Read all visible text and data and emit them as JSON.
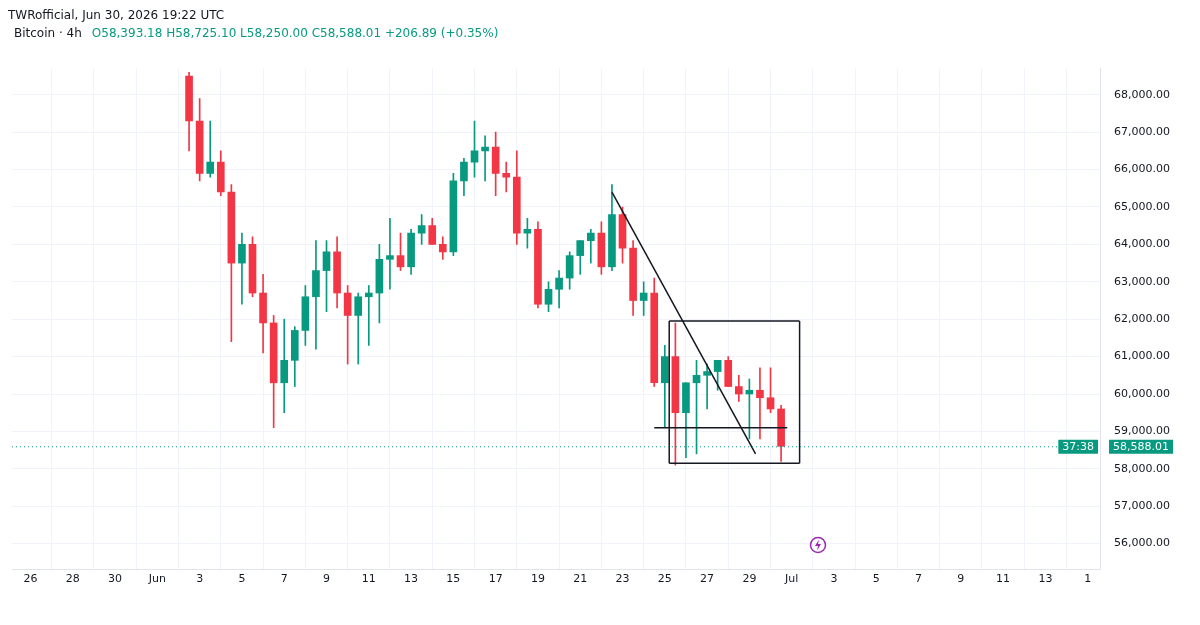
{
  "chart_data": {
    "type": "candlestick",
    "title": "Bitcoin · 4h",
    "subtitle": "O58,393.18 H58,725.10 L58,250.00 C58,588.01 +206.89 (+0.35%)",
    "annotations": [
      "TWRofficial, Jun 30, 2026 19:22 UTC",
      "37:38"
    ],
    "x": [
      "2026-06-02T12:00",
      "2026-06-03T00:00",
      "2026-06-03T12:00",
      "2026-06-04T00:00",
      "2026-06-04T12:00",
      "2026-06-05T00:00",
      "2026-06-05T12:00",
      "2026-06-06T00:00",
      "2026-06-06T12:00",
      "2026-06-07T00:00",
      "2026-06-07T12:00",
      "2026-06-08T00:00",
      "2026-06-08T12:00",
      "2026-06-09T00:00",
      "2026-06-09T12:00",
      "2026-06-10T00:00",
      "2026-06-10T12:00",
      "2026-06-11T00:00",
      "2026-06-11T12:00",
      "2026-06-12T00:00",
      "2026-06-12T12:00",
      "2026-06-13T00:00",
      "2026-06-13T12:00",
      "2026-06-14T00:00",
      "2026-06-14T12:00",
      "2026-06-15T00:00",
      "2026-06-15T12:00",
      "2026-06-16T00:00",
      "2026-06-16T12:00",
      "2026-06-17T00:00",
      "2026-06-17T12:00",
      "2026-06-18T00:00",
      "2026-06-18T12:00",
      "2026-06-19T00:00",
      "2026-06-19T12:00",
      "2026-06-20T00:00",
      "2026-06-20T12:00",
      "2026-06-21T00:00",
      "2026-06-21T12:00",
      "2026-06-22T00:00",
      "2026-06-22T12:00",
      "2026-06-23T00:00",
      "2026-06-23T12:00",
      "2026-06-24T00:00",
      "2026-06-24T12:00",
      "2026-06-25T00:00",
      "2026-06-25T12:00",
      "2026-06-26T00:00",
      "2026-06-26T12:00",
      "2026-06-27T00:00",
      "2026-06-27T12:00",
      "2026-06-28T00:00",
      "2026-06-28T12:00",
      "2026-06-29T00:00",
      "2026-06-29T12:00",
      "2026-06-30T00:00",
      "2026-06-30T12:00"
    ],
    "ohlc": [
      [
        68500,
        68600,
        66500,
        67300
      ],
      [
        67300,
        67900,
        65700,
        65900
      ],
      [
        65900,
        67300,
        65800,
        66200
      ],
      [
        66200,
        66500,
        65300,
        65400
      ],
      [
        65400,
        65600,
        61400,
        63500
      ],
      [
        63500,
        64300,
        62400,
        64000
      ],
      [
        64000,
        64200,
        62600,
        62700
      ],
      [
        62700,
        63200,
        61100,
        61900
      ],
      [
        61900,
        62100,
        59100,
        60300
      ],
      [
        60300,
        62000,
        59500,
        60900
      ],
      [
        60900,
        61800,
        60200,
        61700
      ],
      [
        61700,
        62900,
        61300,
        62600
      ],
      [
        62600,
        64100,
        61200,
        63300
      ],
      [
        63300,
        64100,
        62200,
        63800
      ],
      [
        63800,
        64200,
        62300,
        62700
      ],
      [
        62700,
        62900,
        60800,
        62100
      ],
      [
        62100,
        62700,
        60800,
        62600
      ],
      [
        62600,
        62900,
        61300,
        62700
      ],
      [
        62700,
        64000,
        61900,
        63600
      ],
      [
        63600,
        64700,
        62800,
        63700
      ],
      [
        63700,
        64300,
        63300,
        63400
      ],
      [
        63400,
        64400,
        63200,
        64300
      ],
      [
        64300,
        64800,
        64000,
        64500
      ],
      [
        64500,
        64700,
        64000,
        64000
      ],
      [
        64000,
        64200,
        63600,
        63800
      ],
      [
        63800,
        65900,
        63700,
        65700
      ],
      [
        65700,
        66300,
        65300,
        66200
      ],
      [
        66200,
        67300,
        65800,
        66500
      ],
      [
        66500,
        66900,
        65700,
        66600
      ],
      [
        66600,
        67000,
        65300,
        65900
      ],
      [
        65900,
        66200,
        65400,
        65800
      ],
      [
        65800,
        66500,
        64000,
        64300
      ],
      [
        64300,
        64700,
        63900,
        64400
      ],
      [
        64400,
        64600,
        62300,
        62400
      ],
      [
        62400,
        63000,
        62200,
        62800
      ],
      [
        62800,
        63300,
        62300,
        63100
      ],
      [
        63100,
        63800,
        62800,
        63700
      ],
      [
        63700,
        64100,
        63200,
        64100
      ],
      [
        64100,
        64400,
        63500,
        64300
      ],
      [
        64300,
        64600,
        63200,
        63400
      ],
      [
        63400,
        65600,
        63300,
        64800
      ],
      [
        64800,
        65000,
        63500,
        63900
      ],
      [
        63900,
        64100,
        62100,
        62500
      ],
      [
        62500,
        63000,
        62100,
        62700
      ],
      [
        62700,
        63100,
        60200,
        60300
      ],
      [
        60300,
        61300,
        59100,
        61000
      ],
      [
        61000,
        61900,
        58100,
        59500
      ],
      [
        59500,
        60300,
        58300,
        60300
      ],
      [
        60300,
        60900,
        58400,
        60500
      ],
      [
        60500,
        60800,
        59600,
        60600
      ],
      [
        60600,
        60900,
        60100,
        60900
      ],
      [
        60900,
        61000,
        60200,
        60200
      ],
      [
        60200,
        60500,
        59800,
        60000
      ],
      [
        60000,
        60400,
        58800,
        60100
      ],
      [
        60100,
        60700,
        58800,
        59900
      ],
      [
        59900,
        60700,
        59500,
        59600
      ],
      [
        59600,
        59700,
        58200,
        58600
      ]
    ],
    "colors": [
      "#f23645",
      "#f23645",
      "#089981",
      "#f23645",
      "#f23645",
      "#089981",
      "#f23645",
      "#f23645",
      "#f23645",
      "#089981",
      "#089981",
      "#089981",
      "#089981",
      "#089981",
      "#f23645",
      "#f23645",
      "#089981",
      "#089981",
      "#089981",
      "#089981",
      "#f23645",
      "#089981",
      "#089981",
      "#f23645",
      "#f23645",
      "#089981",
      "#089981",
      "#089981",
      "#089981",
      "#f23645",
      "#f23645",
      "#f23645",
      "#089981",
      "#f23645",
      "#089981",
      "#089981",
      "#089981",
      "#089981",
      "#089981",
      "#f23645",
      "#089981",
      "#f23645",
      "#f23645",
      "#089981",
      "#f23645",
      "#089981",
      "#f23645",
      "#089981",
      "#089981",
      "#089981",
      "#089981",
      "#f23645",
      "#f23645",
      "#089981",
      "#f23645",
      "#f23645",
      "#f23645"
    ],
    "series": [
      {
        "type": "line",
        "x": [
          "2026-06-22T12:00",
          "2026-06-29T07:00"
        ],
        "values": [
          65400,
          58400
        ],
        "color": "#131722"
      },
      {
        "type": "line",
        "x": [
          "2026-06-24T12:00",
          "2026-06-30T19:00"
        ],
        "values": [
          59100,
          59100
        ],
        "color": "#131722"
      },
      {
        "type": "line",
        "x": [
          "2026-06-25T05:00",
          "2026-07-01T09:00"
        ],
        "values": [
          61950,
          61950
        ],
        "color": "#131722"
      },
      {
        "type": "line",
        "x": [
          "2026-06-25T05:00",
          "2026-07-01T09:00"
        ],
        "values": [
          58150,
          58150
        ],
        "color": "#131722"
      },
      {
        "type": "line",
        "x": [
          "2026-06-25T05:00",
          "2026-06-25T05:00"
        ],
        "values": [
          58150,
          61950
        ],
        "color": "#131722"
      },
      {
        "type": "line",
        "x": [
          "2026-07-01T09:00",
          "2026-07-01T09:00"
        ],
        "values": [
          58150,
          61950
        ],
        "color": "#131722"
      }
    ],
    "ref_lines": [
      {
        "axis": "y",
        "value": 58588.01,
        "label": "58,588.01",
        "color": "#089981",
        "line_style": "dotted"
      }
    ],
    "xlim": [
      "2026-05-25T03:00",
      "2026-07-15T14:00"
    ],
    "xticks": [
      {
        "value": "2026-05-26",
        "label": "26"
      },
      {
        "value": "2026-05-28",
        "label": "28"
      },
      {
        "value": "2026-05-30",
        "label": "30"
      },
      {
        "value": "2026-06-01",
        "label": "Jun"
      },
      {
        "value": "2026-06-03",
        "label": "3"
      },
      {
        "value": "2026-06-05",
        "label": "5"
      },
      {
        "value": "2026-06-07",
        "label": "7"
      },
      {
        "value": "2026-06-09",
        "label": "9"
      },
      {
        "value": "2026-06-11",
        "label": "11"
      },
      {
        "value": "2026-06-13",
        "label": "13"
      },
      {
        "value": "2026-06-15",
        "label": "15"
      },
      {
        "value": "2026-06-17",
        "label": "17"
      },
      {
        "value": "2026-06-19",
        "label": "19"
      },
      {
        "value": "2026-06-21",
        "label": "21"
      },
      {
        "value": "2026-06-23",
        "label": "23"
      },
      {
        "value": "2026-06-25",
        "label": "25"
      },
      {
        "value": "2026-06-27",
        "label": "27"
      },
      {
        "value": "2026-06-29",
        "label": "29"
      },
      {
        "value": "2026-07-01",
        "label": "Jul"
      },
      {
        "value": "2026-07-03",
        "label": "3"
      },
      {
        "value": "2026-07-05",
        "label": "5"
      },
      {
        "value": "2026-07-07",
        "label": "7"
      },
      {
        "value": "2026-07-09",
        "label": "9"
      },
      {
        "value": "2026-07-11",
        "label": "11"
      },
      {
        "value": "2026-07-13",
        "label": "13"
      },
      {
        "value": "2026-07-15",
        "label": "1"
      }
    ],
    "ylim": [
      55300,
      68700
    ],
    "yticks": [
      {
        "value": 56000,
        "label": "56,000.00"
      },
      {
        "value": 57000,
        "label": "57,000.00"
      },
      {
        "value": 58000,
        "label": "58,000.00"
      },
      {
        "value": 59000,
        "label": "59,000.00"
      },
      {
        "value": 60000,
        "label": "60,000.00"
      },
      {
        "value": 61000,
        "label": "61,000.00"
      },
      {
        "value": 62000,
        "label": "62,000.00"
      },
      {
        "value": 63000,
        "label": "63,000.00"
      },
      {
        "value": 64000,
        "label": "64,000.00"
      },
      {
        "value": 65000,
        "label": "65,000.00"
      },
      {
        "value": 66000,
        "label": "66,000.00"
      },
      {
        "value": 67000,
        "label": "67,000.00"
      },
      {
        "value": 68000,
        "label": "68,000.00"
      }
    ],
    "grid": true
  }
}
